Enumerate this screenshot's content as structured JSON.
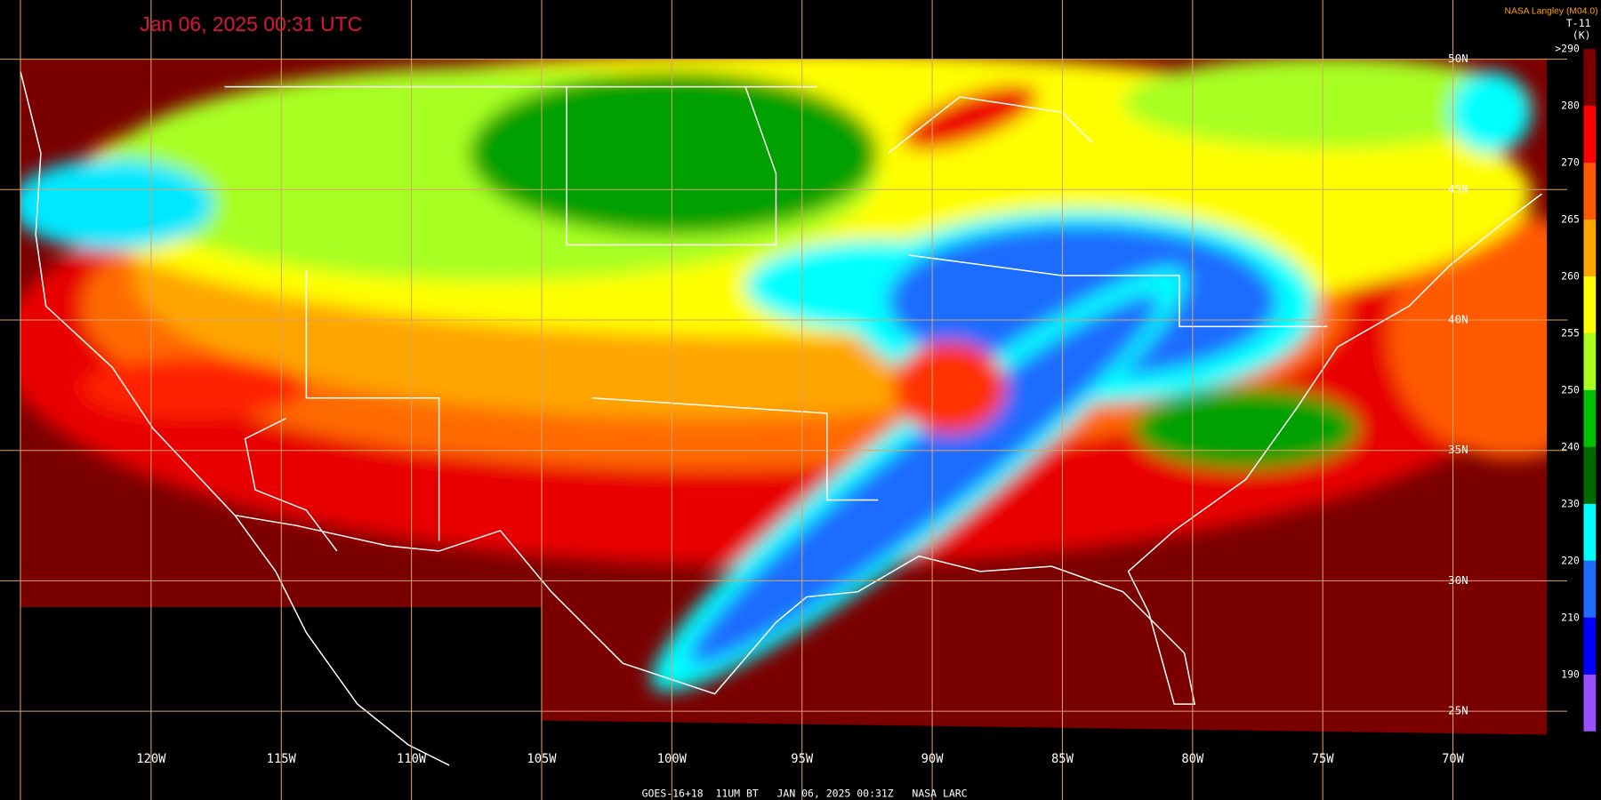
{
  "header": {
    "timestamp": "Jan 06, 2025 00:31 UTC",
    "source": "NASA Langley (M04.0)",
    "product": "T-11",
    "unit": "(K)"
  },
  "colorbar": {
    "labels": [
      ">290",
      "280",
      "270",
      "265",
      "260",
      "255",
      "250",
      "240",
      "230",
      "220",
      "210",
      "190"
    ],
    "colors": [
      "#7a0000",
      "#ff0000",
      "#ff5a00",
      "#ffa500",
      "#ffff00",
      "#a8ff20",
      "#00c000",
      "#006a00",
      "#00ffff",
      "#1e6cff",
      "#0000ff",
      "#9a50ff"
    ]
  },
  "longitude_labels": [
    "120W",
    "115W",
    "110W",
    "105W",
    "100W",
    "95W",
    "90W",
    "85W",
    "80W",
    "75W",
    "70W"
  ],
  "latitude_labels": [
    "50N",
    "45N",
    "40N",
    "35N",
    "30N",
    "25N"
  ],
  "footer": "GOES-16+18  11UM BT   JAN 06, 2025 00:31Z   NASA LARC"
}
